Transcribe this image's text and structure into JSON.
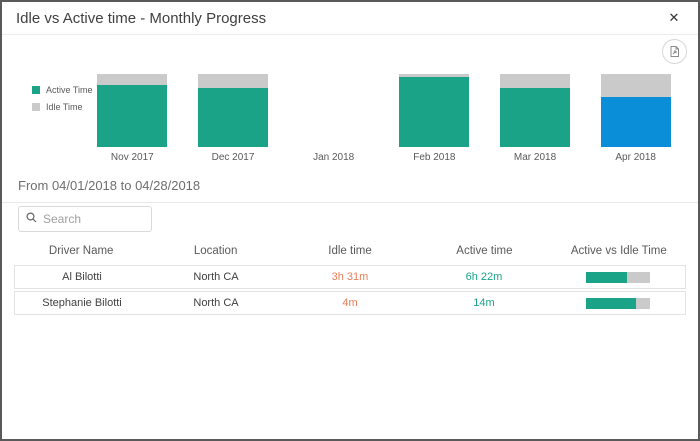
{
  "header": {
    "title": "Idle vs Active time - Monthly Progress"
  },
  "icons": {
    "close": "✕",
    "search": "magnifier",
    "export": "export-document"
  },
  "chart_data": {
    "type": "bar",
    "stacked": true,
    "title": "Idle vs Active time - Monthly Progress",
    "categories": [
      "Nov 2017",
      "Dec 2017",
      "Jan 2018",
      "Feb 2018",
      "Mar 2018",
      "Apr 2018"
    ],
    "series": [
      {
        "name": "Active Time",
        "values": [
          85,
          81,
          0,
          96,
          81,
          68
        ]
      },
      {
        "name": "Idle Time",
        "values": [
          15,
          19,
          0,
          4,
          19,
          32
        ]
      }
    ],
    "ylim": [
      0,
      100
    ],
    "grid": false,
    "legend_position": "left",
    "highlighted_category": "Apr 2018",
    "highlighted_index": 5
  },
  "filters": {
    "date_range_label": "From 04/01/2018 to 04/28/2018"
  },
  "search": {
    "placeholder": "Search"
  },
  "table": {
    "columns": [
      "Driver Name",
      "Location",
      "Idle time",
      "Active time",
      "Active vs Idle Time"
    ],
    "rows": [
      {
        "driver": "Al Bilotti",
        "location": "North CA",
        "idle_time": "3h 31m",
        "active_time": "6h 22m",
        "active_pct": 64
      },
      {
        "driver": "Stephanie Bilotti",
        "location": "North CA",
        "idle_time": "4m",
        "active_time": "14m",
        "active_pct": 78
      }
    ]
  },
  "colors": {
    "active_teal": "#1AA387",
    "idle_gray": "#CACACA",
    "selected_blue": "#0A8ED8",
    "idle_text_orange": "#E87E5A"
  }
}
